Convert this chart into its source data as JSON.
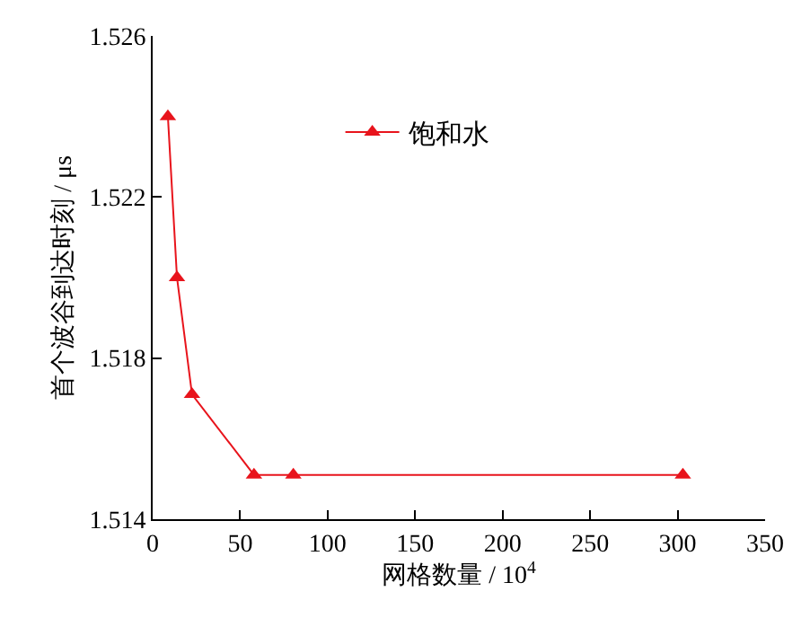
{
  "chart_data": {
    "type": "line",
    "xlabel": "网格数量 / 10$^{4}$",
    "ylabel": "首个波谷到达时刻 / μs",
    "x": [
      8.7,
      13.9,
      22.5,
      57.9,
      80.4,
      303
    ],
    "series": [
      {
        "name": "饱和水",
        "color": "#e8141c",
        "values": [
          1.524,
          1.52,
          1.5171,
          1.5151,
          1.5151,
          1.5151
        ]
      }
    ],
    "xlim": [
      0,
      350
    ],
    "xticks": [
      0,
      50,
      100,
      150,
      200,
      250,
      300,
      350
    ],
    "ylim": [
      1.514,
      1.526
    ],
    "yticks": [
      {
        "value": 1.514,
        "label": "1.514"
      },
      {
        "value": 1.518,
        "label": "1.518"
      },
      {
        "value": 1.522,
        "label": "1.522"
      },
      {
        "value": 1.526,
        "label": "1.526"
      }
    ],
    "grid": false,
    "legend": "top",
    "marker": "triangle",
    "line_style": "solid"
  }
}
